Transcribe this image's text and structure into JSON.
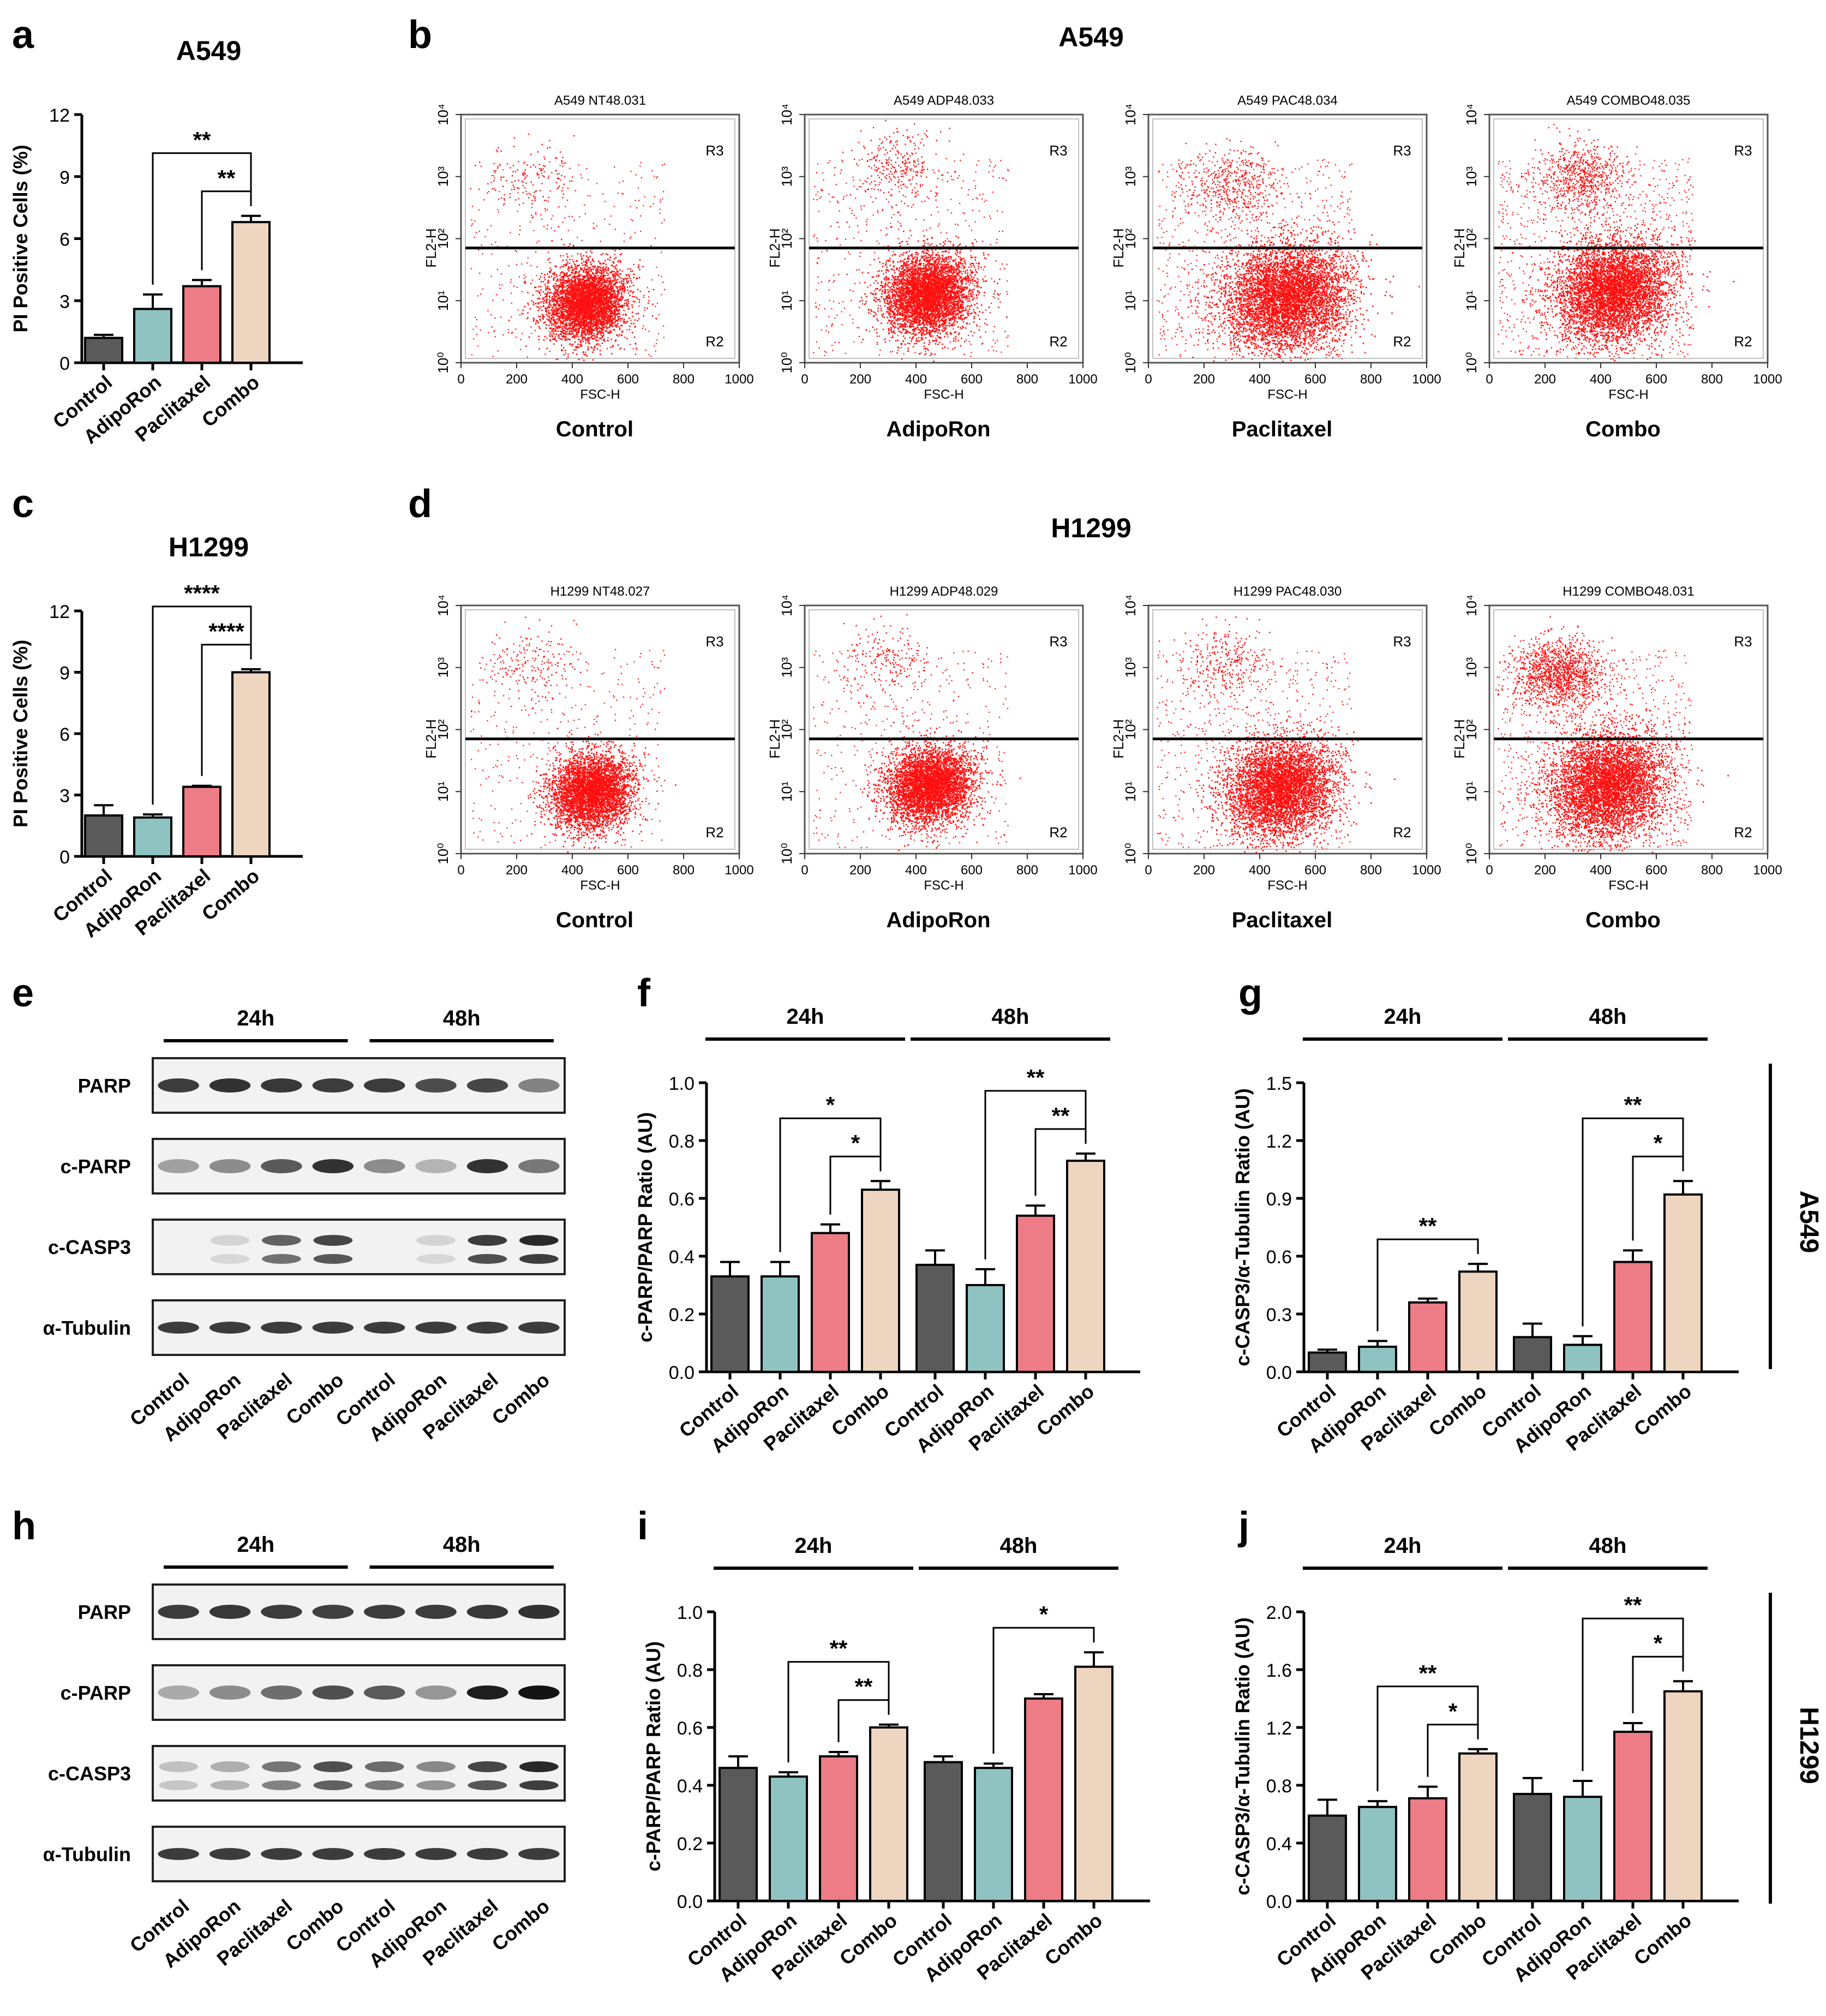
{
  "colors": {
    "control": "#5a5a5a",
    "adiporon": "#8fc3c1",
    "paclitaxel": "#ee7c86",
    "combo": "#eed5c0",
    "dots": "#ff1010"
  },
  "panel_letters": [
    "a",
    "b",
    "c",
    "d",
    "e",
    "f",
    "g",
    "h",
    "i",
    "j"
  ],
  "side_labels": {
    "a549": "A549",
    "h1299": "H1299"
  },
  "blot_groups": {
    "e": [
      "24h",
      "48h"
    ],
    "h": [
      "24h",
      "48h"
    ]
  },
  "blots": {
    "e": {
      "rows": [
        "PARP",
        "c-PARP",
        "c-CASP3",
        "α-Tubulin"
      ],
      "lanes": [
        "Control",
        "AdipoRon",
        "Paclitaxel",
        "Combo",
        "Control",
        "AdipoRon",
        "Paclitaxel",
        "Combo"
      ],
      "intensity": [
        [
          0.8,
          0.85,
          0.82,
          0.8,
          0.8,
          0.72,
          0.75,
          0.45
        ],
        [
          0.3,
          0.4,
          0.65,
          0.85,
          0.4,
          0.2,
          0.85,
          0.5
        ],
        [
          0.0,
          0.05,
          0.65,
          0.8,
          0.0,
          0.05,
          0.85,
          0.95
        ],
        [
          0.8,
          0.8,
          0.8,
          0.8,
          0.8,
          0.8,
          0.8,
          0.8
        ]
      ]
    },
    "h": {
      "rows": [
        "PARP",
        "c-PARP",
        "c-CASP3",
        "α-Tubulin"
      ],
      "lanes": [
        "Control",
        "AdipoRon",
        "Paclitaxel",
        "Combo",
        "Control",
        "AdipoRon",
        "Paclitaxel",
        "Combo"
      ],
      "intensity": [
        [
          0.8,
          0.82,
          0.8,
          0.78,
          0.8,
          0.8,
          0.82,
          0.85
        ],
        [
          0.25,
          0.4,
          0.55,
          0.7,
          0.65,
          0.35,
          0.95,
          1.0
        ],
        [
          0.15,
          0.25,
          0.55,
          0.75,
          0.6,
          0.45,
          0.8,
          0.95
        ],
        [
          0.8,
          0.8,
          0.8,
          0.8,
          0.8,
          0.8,
          0.8,
          0.8
        ]
      ]
    }
  },
  "chart_data": [
    {
      "panel": "a",
      "type": "bar",
      "title": "A549",
      "categories": [
        "Control",
        "AdipoRon",
        "Paclitaxel",
        "Combo"
      ],
      "values": [
        1.2,
        2.6,
        3.7,
        6.8
      ],
      "errors": [
        0.15,
        0.7,
        0.3,
        0.3
      ],
      "ylabel": "PI Positive Cells (%)",
      "ylim": [
        0,
        12
      ],
      "yticks": [
        "0",
        "3",
        "6",
        "9",
        "12"
      ],
      "significance": [
        {
          "from": "AdipoRon",
          "to": "Combo",
          "label": "**"
        },
        {
          "from": "Paclitaxel",
          "to": "Combo",
          "label": "**"
        }
      ]
    },
    {
      "panel": "c",
      "type": "bar",
      "title": "H1299",
      "categories": [
        "Control",
        "AdipoRon",
        "Paclitaxel",
        "Combo"
      ],
      "values": [
        2.0,
        1.9,
        3.4,
        9.0
      ],
      "errors": [
        0.5,
        0.15,
        0.05,
        0.15
      ],
      "ylabel": "PI Positive Cells (%)",
      "ylim": [
        0,
        12
      ],
      "yticks": [
        "0",
        "3",
        "6",
        "9",
        "12"
      ],
      "significance": [
        {
          "from": "AdipoRon",
          "to": "Combo",
          "label": "****"
        },
        {
          "from": "Paclitaxel",
          "to": "Combo",
          "label": "****"
        }
      ]
    },
    {
      "panel": "f",
      "type": "bar",
      "groups": [
        "24h",
        "48h"
      ],
      "categories": [
        "Control",
        "AdipoRon",
        "Paclitaxel",
        "Combo",
        "Control",
        "AdipoRon",
        "Paclitaxel",
        "Combo"
      ],
      "values": [
        0.33,
        0.33,
        0.48,
        0.63,
        0.37,
        0.3,
        0.54,
        0.73
      ],
      "errors": [
        0.05,
        0.05,
        0.03,
        0.03,
        0.05,
        0.055,
        0.035,
        0.025
      ],
      "ylabel": "c-PARP/PARP Ratio (AU)",
      "ylim": [
        0,
        1.0
      ],
      "yticks": [
        "0.0",
        "0.2",
        "0.4",
        "0.6",
        "0.8",
        "1.0"
      ],
      "significance": [
        {
          "from": 1,
          "to": 3,
          "label": "*"
        },
        {
          "from": 2,
          "to": 3,
          "label": "*"
        },
        {
          "from": 5,
          "to": 7,
          "label": "**"
        },
        {
          "from": 6,
          "to": 7,
          "label": "**"
        }
      ]
    },
    {
      "panel": "g",
      "type": "bar",
      "groups": [
        "24h",
        "48h"
      ],
      "categories": [
        "Control",
        "AdipoRon",
        "Paclitaxel",
        "Combo",
        "Control",
        "AdipoRon",
        "Paclitaxel",
        "Combo"
      ],
      "values": [
        0.1,
        0.13,
        0.36,
        0.52,
        0.18,
        0.14,
        0.57,
        0.92
      ],
      "errors": [
        0.015,
        0.03,
        0.02,
        0.04,
        0.07,
        0.045,
        0.06,
        0.07
      ],
      "ylabel": "c-CASP3/α-Tubulin Ratio (AU)",
      "ylim": [
        0,
        1.5
      ],
      "yticks": [
        "0.0",
        "0.3",
        "0.6",
        "0.9",
        "1.2",
        "1.5"
      ],
      "significance": [
        {
          "from": 1,
          "to": 3,
          "label": "**"
        },
        {
          "from": 5,
          "to": 7,
          "label": "**"
        },
        {
          "from": 6,
          "to": 7,
          "label": "*"
        }
      ]
    },
    {
      "panel": "i",
      "type": "bar",
      "groups": [
        "24h",
        "48h"
      ],
      "categories": [
        "Control",
        "AdipoRon",
        "Paclitaxel",
        "Combo",
        "Control",
        "AdipoRon",
        "Paclitaxel",
        "Combo"
      ],
      "values": [
        0.46,
        0.43,
        0.5,
        0.6,
        0.48,
        0.46,
        0.7,
        0.81
      ],
      "errors": [
        0.04,
        0.015,
        0.015,
        0.01,
        0.02,
        0.015,
        0.015,
        0.05
      ],
      "ylabel": "c-PARP/PARP Ratio (AU)",
      "ylim": [
        0,
        1.0
      ],
      "yticks": [
        "0.0",
        "0.2",
        "0.4",
        "0.6",
        "0.8",
        "1.0"
      ],
      "significance": [
        {
          "from": 1,
          "to": 3,
          "label": "**"
        },
        {
          "from": 2,
          "to": 3,
          "label": "**"
        },
        {
          "from": 5,
          "to": 7,
          "label": "*"
        }
      ]
    },
    {
      "panel": "j",
      "type": "bar",
      "groups": [
        "24h",
        "48h"
      ],
      "categories": [
        "Control",
        "AdipoRon",
        "Paclitaxel",
        "Combo",
        "Control",
        "AdipoRon",
        "Paclitaxel",
        "Combo"
      ],
      "values": [
        0.59,
        0.65,
        0.71,
        1.02,
        0.74,
        0.72,
        1.17,
        1.45
      ],
      "errors": [
        0.11,
        0.04,
        0.08,
        0.03,
        0.11,
        0.11,
        0.06,
        0.07
      ],
      "ylabel": "c-CASP3/α-Tubulin Ratio (AU)",
      "ylim": [
        0,
        2.0
      ],
      "yticks": [
        "0.0",
        "0.4",
        "0.8",
        "1.2",
        "1.6",
        "2.0"
      ],
      "significance": [
        {
          "from": 1,
          "to": 3,
          "label": "**"
        },
        {
          "from": 2,
          "to": 3,
          "label": "*"
        },
        {
          "from": 5,
          "to": 7,
          "label": "**"
        },
        {
          "from": 6,
          "to": 7,
          "label": "*"
        }
      ]
    },
    {
      "panel": "b",
      "type": "scatter",
      "title": "A549",
      "xlabel": "FSC-H",
      "ylabel": "FL2-H",
      "xticks": [
        "0",
        "200",
        "400",
        "600",
        "800",
        "1000"
      ],
      "yticks": [
        "10⁰",
        "10¹",
        "10²",
        "10³",
        "10⁴"
      ],
      "gate_labels": [
        "R3",
        "R2"
      ],
      "gate_y_log": 1.85,
      "plots": [
        {
          "file": "A549 NT48.031",
          "label": "Control",
          "main": {
            "x": 430,
            "y": 0.95,
            "n": 4200,
            "sx": 70,
            "sy": 0.3
          },
          "upper": {
            "x": 250,
            "y": 3.0,
            "n": 150
          },
          "scatter": 380
        },
        {
          "file": "A549 ADP48.033",
          "label": "AdipoRon",
          "main": {
            "x": 420,
            "y": 1.1,
            "n": 4500,
            "sx": 75,
            "sy": 0.32
          },
          "upper": {
            "x": 330,
            "y": 3.2,
            "n": 280
          },
          "scatter": 520
        },
        {
          "file": "A549 PAC48.034",
          "label": "Paclitaxel",
          "main": {
            "x": 470,
            "y": 1.05,
            "n": 5200,
            "sx": 110,
            "sy": 0.42
          },
          "upper": {
            "x": 300,
            "y": 2.9,
            "n": 420
          },
          "scatter": 900
        },
        {
          "file": "A549 COMBO48.035",
          "label": "Combo",
          "main": {
            "x": 420,
            "y": 1.15,
            "n": 5000,
            "sx": 100,
            "sy": 0.4
          },
          "upper": {
            "x": 330,
            "y": 3.0,
            "n": 650
          },
          "scatter": 1000
        }
      ]
    },
    {
      "panel": "d",
      "type": "scatter",
      "title": "H1299",
      "xlabel": "FSC-H",
      "ylabel": "FL2-H",
      "xticks": [
        "0",
        "200",
        "400",
        "600",
        "800",
        "1000"
      ],
      "yticks": [
        "10⁰",
        "10¹",
        "10²",
        "10³",
        "10⁴"
      ],
      "gate_labels": [
        "R3",
        "R2"
      ],
      "gate_y_log": 1.85,
      "plots": [
        {
          "file": "H1299 NT48.027",
          "label": "Control",
          "main": {
            "x": 450,
            "y": 1.0,
            "n": 4200,
            "sx": 70,
            "sy": 0.3
          },
          "upper": {
            "x": 250,
            "y": 3.1,
            "n": 170
          },
          "scatter": 400
        },
        {
          "file": "H1299 ADP48.029",
          "label": "AdipoRon",
          "main": {
            "x": 430,
            "y": 1.1,
            "n": 4400,
            "sx": 75,
            "sy": 0.3
          },
          "upper": {
            "x": 300,
            "y": 3.1,
            "n": 200
          },
          "scatter": 450
        },
        {
          "file": "H1299 PAC48.030",
          "label": "Paclitaxel",
          "main": {
            "x": 450,
            "y": 1.05,
            "n": 4800,
            "sx": 95,
            "sy": 0.38
          },
          "upper": {
            "x": 280,
            "y": 3.1,
            "n": 280
          },
          "scatter": 700
        },
        {
          "file": "H1299 COMBO48.031",
          "label": "Combo",
          "main": {
            "x": 400,
            "y": 1.1,
            "n": 5000,
            "sx": 100,
            "sy": 0.42
          },
          "upper": {
            "x": 250,
            "y": 2.9,
            "n": 1300
          },
          "scatter": 900
        }
      ]
    }
  ]
}
